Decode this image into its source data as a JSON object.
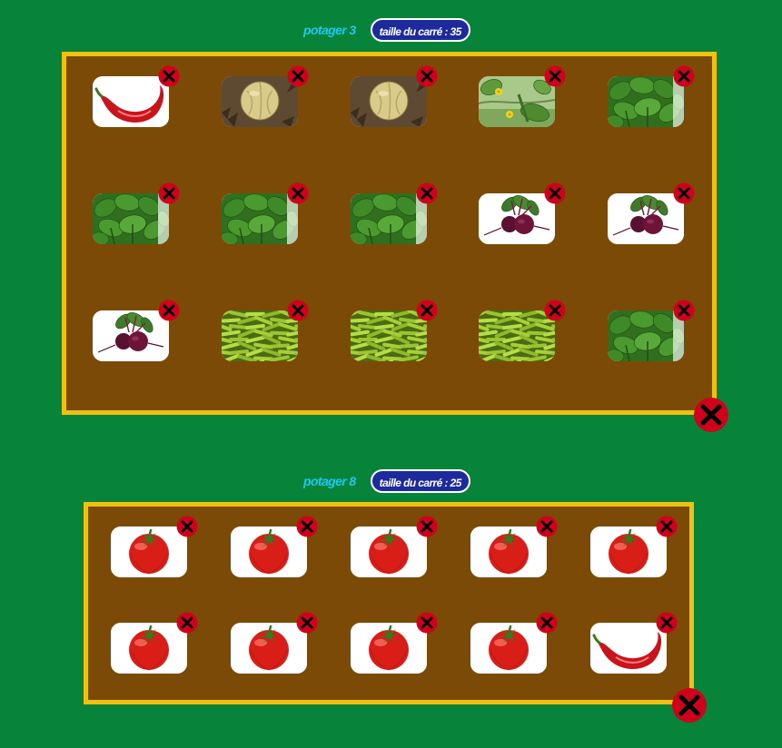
{
  "gardens": [
    {
      "title": "potager 3",
      "size_label": "taille du carré : 35",
      "rows": [
        [
          "pepper",
          "melon",
          "melon",
          "cucumber",
          "basil"
        ],
        [
          "basil",
          "basil",
          "basil",
          "beetroot",
          "beetroot"
        ],
        [
          "beetroot",
          "green-beans",
          "green-beans",
          "green-beans",
          "basil"
        ]
      ]
    },
    {
      "title": "potager 8",
      "size_label": "taille du carré : 25",
      "rows": [
        [
          "tomato",
          "tomato",
          "tomato",
          "tomato",
          "tomato"
        ],
        [
          "tomato",
          "tomato",
          "tomato",
          "tomato",
          "pepper"
        ]
      ]
    }
  ],
  "icons": {
    "remove_plant": "close-icon",
    "delete_garden": "close-icon"
  },
  "colors": {
    "background": "#07833a",
    "plot_soil": "#7a4a06",
    "plot_border": "#f0c10e",
    "title": "#1fc8f0",
    "badge": "#1d2a9e",
    "remove_button": "#d0021b"
  }
}
